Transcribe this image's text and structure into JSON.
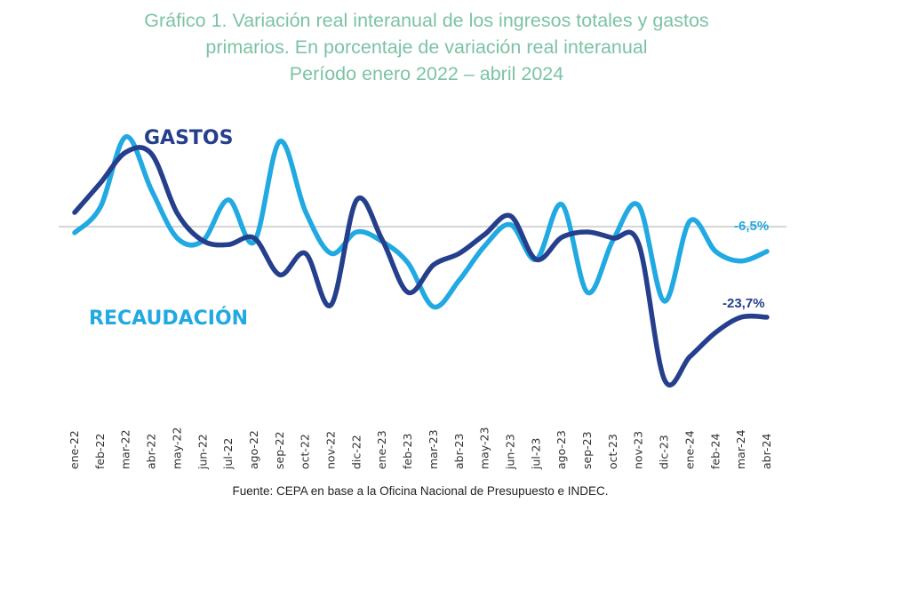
{
  "chart_data": {
    "type": "line",
    "title": [
      "Gráfico 1. Variación real interanual de los ingresos totales y gastos",
      "primarios. En porcentaje de variación real interanual",
      "Período enero 2022 – abril 2024"
    ],
    "xlabel": "",
    "ylabel": "",
    "grid": false,
    "zero_line": true,
    "categories": [
      "ene-22",
      "feb-22",
      "mar-22",
      "abr-22",
      "may-22",
      "jun-22",
      "jul-22",
      "ago-22",
      "sep-22",
      "oct-22",
      "nov-22",
      "dic-22",
      "ene-23",
      "feb-23",
      "mar-23",
      "abr-23",
      "may-23",
      "jun-23",
      "jul-23",
      "ago-23",
      "sep-23",
      "oct-23",
      "nov-23",
      "dic-23",
      "ene-24",
      "feb-24",
      "mar-24",
      "abr-24"
    ],
    "series": [
      {
        "name": "GASTOS",
        "color": "#253f8c",
        "values": [
          3.7,
          11.4,
          19.5,
          19.0,
          3.5,
          -3.7,
          -4.7,
          -3.0,
          -12.6,
          -7.0,
          -20.5,
          7.0,
          -3.5,
          -17.2,
          -10.0,
          -7.0,
          -2.0,
          2.8,
          -8.6,
          -2.8,
          -1.4,
          -3.0,
          -4.5,
          -40.0,
          -34.0,
          -27.7,
          -23.7,
          -23.7
        ],
        "end_label": "-23,7%"
      },
      {
        "name": "RECAUDACIÓN",
        "color": "#21a9e1",
        "values": [
          -1.6,
          5.1,
          23.5,
          9.5,
          -3.0,
          -3.7,
          7.0,
          -4.0,
          22.3,
          4.0,
          -7.0,
          -1.4,
          -3.9,
          -9.5,
          -21.0,
          -14.0,
          -5.0,
          0.5,
          -8.6,
          5.8,
          -17.2,
          -3.5,
          5.5,
          -19.5,
          1.5,
          -6.5,
          -9.0,
          -6.5
        ],
        "end_label": "-6,5%"
      }
    ],
    "annotations": [
      {
        "text": "GASTOS",
        "series": "GASTOS"
      },
      {
        "text": "RECAUDACIÓN",
        "series": "RECAUDACIÓN"
      },
      {
        "text": "-6,5%",
        "series": "RECAUDACIÓN"
      },
      {
        "text": "-23,7%",
        "series": "GASTOS"
      }
    ],
    "ylim": [
      -45,
      30
    ]
  },
  "source": "Fuente: CEPA en base a la Oficina Nacional de Presupuesto e INDEC."
}
